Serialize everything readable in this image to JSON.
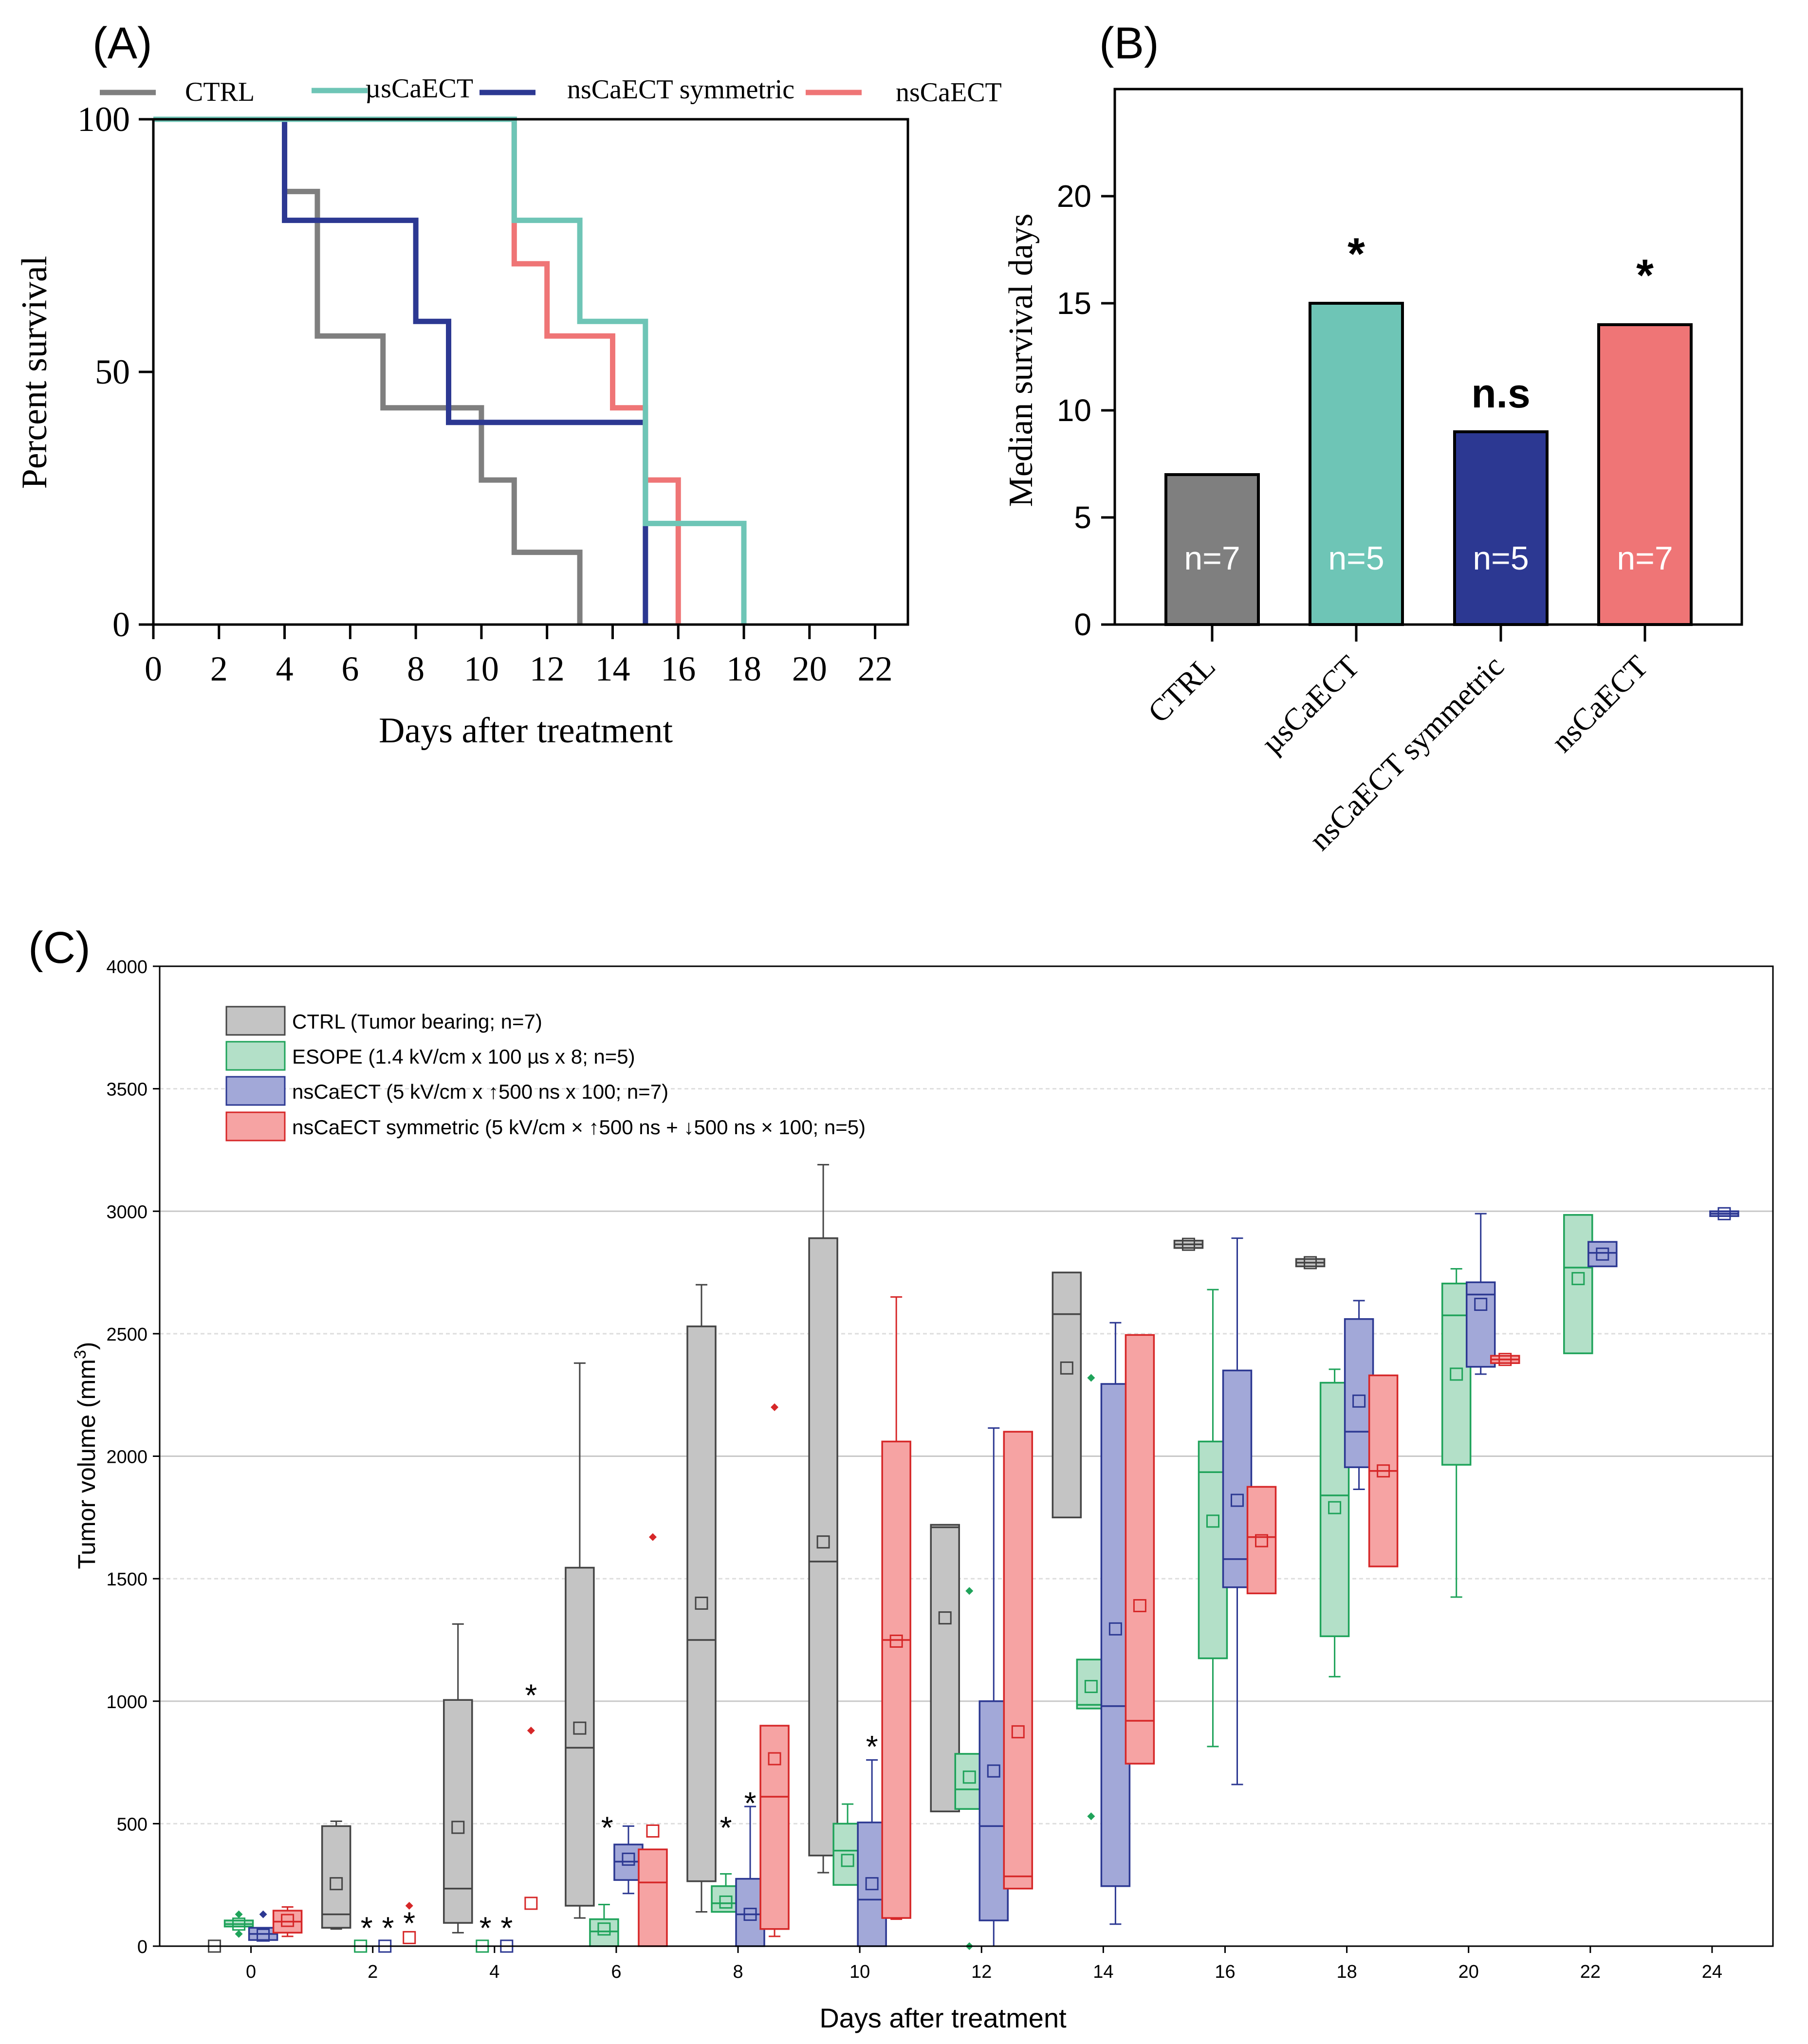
{
  "panel_labels": {
    "a": "(A)",
    "b": "(B)",
    "c": "(C)"
  },
  "colors": {
    "ctrl": "#7f7f7f",
    "us": "#6ec5b6",
    "ns_sym": "#2c3892",
    "ns": "#ef7576",
    "ctrl_box": "#c4c4c4",
    "esope_box": "#b3e0c8",
    "esope_line": "#1fa35a",
    "nsbox_fill": "#a2a8d8",
    "nsbox_line": "#2c3892",
    "symbox_fill": "#f6a3a3",
    "symbox_line": "#d62728"
  },
  "chart_data": [
    {
      "type": "line",
      "title": "(A)",
      "xlabel": "Days after treatment",
      "ylabel": "Percent survival",
      "xlim": [
        0,
        23
      ],
      "ylim": [
        0,
        100
      ],
      "xticks": [
        "0",
        "2",
        "4",
        "6",
        "8",
        "10",
        "12",
        "14",
        "16",
        "18",
        "20",
        "22"
      ],
      "yticks": [
        "0",
        "50",
        "100"
      ],
      "legend_position": "top",
      "series": [
        {
          "name": "CTRL",
          "color_key": "ctrl",
          "x": [
            0,
            4,
            4,
            5,
            5,
            7,
            7,
            10,
            10,
            11,
            11,
            13,
            13
          ],
          "y": [
            100,
            100,
            85.7,
            85.7,
            57.1,
            57.1,
            42.9,
            42.9,
            28.6,
            28.6,
            14.3,
            14.3,
            0
          ]
        },
        {
          "name": "µsCaECT",
          "color_key": "us",
          "x": [
            0,
            11,
            11,
            13,
            13,
            15,
            15,
            18,
            18
          ],
          "y": [
            100,
            100,
            80,
            80,
            60,
            60,
            20,
            20,
            0
          ]
        },
        {
          "name": "nsCaECT symmetric",
          "color_key": "ns_sym",
          "x": [
            0,
            4,
            4,
            8,
            8,
            9,
            9,
            15,
            15
          ],
          "y": [
            100,
            100,
            80,
            80,
            60,
            60,
            40,
            40,
            0
          ]
        },
        {
          "name": "nsCaECT",
          "color_key": "ns",
          "x": [
            0,
            11,
            11,
            12,
            12,
            14,
            14,
            15,
            15,
            16,
            16
          ],
          "y": [
            100,
            100,
            71.4,
            71.4,
            57.1,
            57.1,
            42.9,
            42.9,
            28.6,
            28.6,
            0
          ]
        }
      ]
    },
    {
      "type": "bar",
      "title": "(B)",
      "ylabel": "Median survival days",
      "ylim": [
        0,
        25
      ],
      "yticks": [
        "0",
        "5",
        "10",
        "15",
        "20"
      ],
      "categories": [
        "CTRL",
        "µsCaECT",
        "nsCaECT symmetric",
        "nsCaECT"
      ],
      "values": [
        7,
        15,
        9,
        14
      ],
      "color_keys": [
        "ctrl",
        "us",
        "ns_sym",
        "ns"
      ],
      "n_labels": [
        "n=7",
        "n=5",
        "n=5",
        "n=7"
      ],
      "significance": [
        "",
        "*",
        "n.s",
        "*"
      ]
    },
    {
      "type": "box",
      "title": "(C)",
      "xlabel": "Days after treatment",
      "ylabel_main": "Tumor volume (mm",
      "ylabel_sup": "3",
      "ylabel_end": ")",
      "ylim": [
        0,
        4000
      ],
      "xlim": [
        -1.5,
        25
      ],
      "yticks": [
        "0",
        "500",
        "1000",
        "1500",
        "2000",
        "2500",
        "3000",
        "3500",
        "4000"
      ],
      "xticks": [
        "0",
        "2",
        "4",
        "6",
        "8",
        "10",
        "12",
        "14",
        "16",
        "18",
        "20",
        "22",
        "24"
      ],
      "legend": [
        "CTRL (Tumor bearing; n=7)",
        "ESOPE (1.4 kV/cm x 100 µs x 8; n=5)",
        "nsCaECT (5 kV/cm x ↑500 ns x 100; n=7)",
        "nsCaECT symmetric (5 kV/cm × ↑500 ns + ↓500 ns × 100; n=5)"
      ],
      "groups": [
        {
          "name": "CTRL",
          "fill_key": "ctrl_box",
          "line": "#444444",
          "boxes": [
            {
              "x": -0.6,
              "min": 0,
              "q1": 0,
              "med": 0,
              "q3": 0,
              "max": 0,
              "mean": 0
            },
            {
              "x": 1.4,
              "min": 70,
              "q1": 75,
              "med": 130,
              "q3": 490,
              "max": 510,
              "mean": 255
            },
            {
              "x": 3.4,
              "min": 55,
              "q1": 95,
              "med": 235,
              "q3": 1005,
              "max": 1315,
              "mean": 485
            },
            {
              "x": 5.4,
              "min": 115,
              "q1": 165,
              "med": 810,
              "q3": 1545,
              "max": 2380,
              "mean": 890
            },
            {
              "x": 7.4,
              "min": 140,
              "q1": 265,
              "med": 1250,
              "q3": 2530,
              "max": 2700,
              "mean": 1400
            },
            {
              "x": 9.4,
              "min": 300,
              "q1": 370,
              "med": 1570,
              "q3": 2890,
              "max": 3190,
              "mean": 1650
            },
            {
              "x": 11.4,
              "min": 550,
              "q1": 550,
              "med": 1710,
              "q3": 1720,
              "max": 1720,
              "mean": 1340
            },
            {
              "x": 13.4,
              "min": 1750,
              "q1": 1750,
              "med": 2580,
              "q3": 2750,
              "max": 2750,
              "mean": 2360
            },
            {
              "x": 15.4,
              "min": 2850,
              "q1": 2850,
              "med": 2865,
              "q3": 2880,
              "max": 2880,
              "mean": 2865
            },
            {
              "x": 17.4,
              "min": 2775,
              "q1": 2775,
              "med": 2790,
              "q3": 2805,
              "max": 2805,
              "mean": 2790
            }
          ]
        },
        {
          "name": "ESOPE",
          "fill_key": "esope_box",
          "line": "#1fa35a",
          "boxes": [
            {
              "x": -0.2,
              "min": 80,
              "q1": 80,
              "med": 90,
              "q3": 105,
              "max": 105,
              "mean": 90
            },
            {
              "x": 1.8,
              "min": 0,
              "q1": 0,
              "med": 0,
              "q3": 0,
              "max": 0,
              "mean": 0
            },
            {
              "x": 3.8,
              "min": 0,
              "q1": 0,
              "med": 0,
              "q3": 0,
              "max": 0,
              "mean": 0
            },
            {
              "x": 5.8,
              "min": 0,
              "q1": 0,
              "med": 60,
              "q3": 110,
              "max": 170,
              "mean": 70
            },
            {
              "x": 7.8,
              "min": 140,
              "q1": 140,
              "med": 175,
              "q3": 245,
              "max": 295,
              "mean": 180
            },
            {
              "x": 9.8,
              "min": 250,
              "q1": 250,
              "med": 390,
              "q3": 500,
              "max": 580,
              "mean": 350
            },
            {
              "x": 11.8,
              "min": 560,
              "q1": 560,
              "med": 640,
              "q3": 785,
              "max": 785,
              "mean": 690
            },
            {
              "x": 13.8,
              "min": 970,
              "q1": 970,
              "med": 985,
              "q3": 1170,
              "max": 1170,
              "mean": 1060
            },
            {
              "x": 15.8,
              "min": 815,
              "q1": 1175,
              "med": 1935,
              "q3": 2060,
              "max": 2680,
              "mean": 1735
            },
            {
              "x": 17.8,
              "min": 1100,
              "q1": 1265,
              "med": 1840,
              "q3": 2300,
              "max": 2355,
              "mean": 1790
            },
            {
              "x": 19.8,
              "min": 1425,
              "q1": 1965,
              "med": 2575,
              "q3": 2705,
              "max": 2765,
              "mean": 2335
            },
            {
              "x": 21.8,
              "min": 2420,
              "q1": 2420,
              "med": 2770,
              "q3": 2985,
              "max": 2985,
              "mean": 2725
            }
          ]
        },
        {
          "name": "nsCaECT",
          "fill_key": "nsbox_fill",
          "line": "#2c3892",
          "boxes": [
            {
              "x": 0.2,
              "min": 25,
              "q1": 25,
              "med": 50,
              "q3": 75,
              "max": 75,
              "mean": 45
            },
            {
              "x": 2.2,
              "min": 0,
              "q1": 0,
              "med": 0,
              "q3": 0,
              "max": 0,
              "mean": 0
            },
            {
              "x": 4.2,
              "min": 0,
              "q1": 0,
              "med": 0,
              "q3": 0,
              "max": 0,
              "mean": 0
            },
            {
              "x": 6.2,
              "min": 215,
              "q1": 270,
              "med": 345,
              "q3": 415,
              "max": 490,
              "mean": 355
            },
            {
              "x": 8.2,
              "min": 0,
              "q1": 0,
              "med": 130,
              "q3": 275,
              "max": 570,
              "mean": 130
            },
            {
              "x": 10.2,
              "min": 0,
              "q1": 0,
              "med": 190,
              "q3": 505,
              "max": 760,
              "mean": 255
            },
            {
              "x": 12.2,
              "min": 0,
              "q1": 105,
              "med": 490,
              "q3": 1000,
              "max": 2115,
              "mean": 715
            },
            {
              "x": 14.2,
              "min": 90,
              "q1": 245,
              "med": 980,
              "q3": 2295,
              "max": 2545,
              "mean": 1295
            },
            {
              "x": 16.2,
              "min": 660,
              "q1": 1465,
              "med": 1580,
              "q3": 2350,
              "max": 2890,
              "mean": 1820
            },
            {
              "x": 18.2,
              "min": 1865,
              "q1": 1955,
              "med": 2100,
              "q3": 2560,
              "max": 2635,
              "mean": 2225
            },
            {
              "x": 20.2,
              "min": 2335,
              "q1": 2365,
              "med": 2660,
              "q3": 2710,
              "max": 2990,
              "mean": 2620
            },
            {
              "x": 22.2,
              "min": 2775,
              "q1": 2775,
              "med": 2830,
              "q3": 2875,
              "max": 2875,
              "mean": 2825
            },
            {
              "x": 24.2,
              "min": 2980,
              "q1": 2980,
              "med": 2990,
              "q3": 3000,
              "max": 3000,
              "mean": 2990
            }
          ]
        },
        {
          "name": "nsCaECT symmetric",
          "fill_key": "symbox_fill",
          "line": "#d62728",
          "boxes": [
            {
              "x": 0.6,
              "min": 40,
              "q1": 55,
              "med": 100,
              "q3": 145,
              "max": 160,
              "mean": 105
            },
            {
              "x": 2.6,
              "min": 0,
              "q1": 0,
              "med": 0,
              "q3": 0,
              "max": 0,
              "mean": 35
            },
            {
              "x": 4.6,
              "min": 0,
              "q1": 0,
              "med": 0,
              "q3": 0,
              "max": 0,
              "mean": 175
            },
            {
              "x": 6.6,
              "min": 0,
              "q1": 0,
              "med": 260,
              "q3": 395,
              "max": 395,
              "mean": 470
            },
            {
              "x": 8.6,
              "min": 40,
              "q1": 70,
              "med": 610,
              "q3": 900,
              "max": 900,
              "mean": 765
            },
            {
              "x": 10.6,
              "min": 110,
              "q1": 115,
              "med": 1250,
              "q3": 2060,
              "max": 2650,
              "mean": 1245
            },
            {
              "x": 12.6,
              "min": 235,
              "q1": 235,
              "med": 285,
              "q3": 2100,
              "max": 2100,
              "mean": 875
            },
            {
              "x": 14.6,
              "min": 745,
              "q1": 745,
              "med": 920,
              "q3": 2495,
              "max": 2495,
              "mean": 1390
            },
            {
              "x": 16.6,
              "min": 1440,
              "q1": 1440,
              "med": 1670,
              "q3": 1875,
              "max": 1875,
              "mean": 1655
            },
            {
              "x": 18.6,
              "min": 1550,
              "q1": 1550,
              "med": 1940,
              "q3": 2330,
              "max": 2330,
              "mean": 1940
            },
            {
              "x": 20.6,
              "min": 2380,
              "q1": 2380,
              "med": 2395,
              "q3": 2410,
              "max": 2410,
              "mean": 2395
            }
          ]
        }
      ],
      "outliers": [
        {
          "x": -0.2,
          "y": 130,
          "color_key": "esope_line"
        },
        {
          "x": -0.2,
          "y": 50,
          "color_key": "esope_line"
        },
        {
          "x": 0.2,
          "y": 130,
          "color_key": "nsbox_line"
        },
        {
          "x": 2.6,
          "y": 165,
          "color_key": "symbox_line"
        },
        {
          "x": 4.6,
          "y": 880,
          "color_key": "symbox_line"
        },
        {
          "x": 6.6,
          "y": 1670,
          "color_key": "symbox_line"
        },
        {
          "x": 8.6,
          "y": 2200,
          "color_key": "symbox_line"
        },
        {
          "x": 11.8,
          "y": 1450,
          "color_key": "esope_line"
        },
        {
          "x": 11.8,
          "y": 0,
          "color_key": "esope_line"
        },
        {
          "x": 13.8,
          "y": 2320,
          "color_key": "esope_line"
        },
        {
          "x": 13.8,
          "y": 530,
          "color_key": "esope_line"
        }
      ],
      "significance": [
        {
          "x": 1.9,
          "y": 110,
          "label": "*"
        },
        {
          "x": 2.25,
          "y": 110,
          "label": "*"
        },
        {
          "x": 2.6,
          "y": 130,
          "label": "*"
        },
        {
          "x": 3.85,
          "y": 110,
          "label": "*"
        },
        {
          "x": 4.2,
          "y": 110,
          "label": "*"
        },
        {
          "x": 4.6,
          "y": 1060,
          "label": "*"
        },
        {
          "x": 5.85,
          "y": 520,
          "label": "*"
        },
        {
          "x": 7.8,
          "y": 520,
          "label": "*"
        },
        {
          "x": 8.2,
          "y": 620,
          "label": "*"
        },
        {
          "x": 10.2,
          "y": 850,
          "label": "*"
        }
      ]
    }
  ]
}
